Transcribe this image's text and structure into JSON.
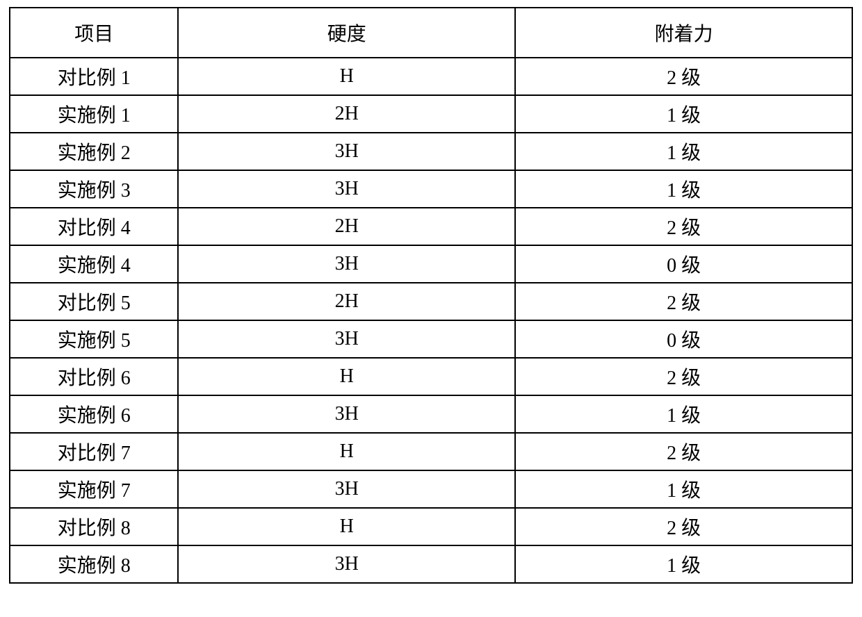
{
  "table": {
    "type": "table",
    "background_color": "#ffffff",
    "border_color": "#000000",
    "border_width": 2,
    "text_color": "#000000",
    "font_family": "SimSun",
    "header_fontsize": 28,
    "cell_fontsize": 28,
    "header_row_height": 72,
    "data_row_height": 54,
    "column_widths_pct": [
      20,
      40,
      40
    ],
    "columns": [
      "项目",
      "硬度",
      "附着力"
    ],
    "rows": [
      [
        "对比例 1",
        "H",
        "2 级"
      ],
      [
        "实施例 1",
        "2H",
        "1 级"
      ],
      [
        "实施例 2",
        "3H",
        "1 级"
      ],
      [
        "实施例 3",
        "3H",
        "1 级"
      ],
      [
        "对比例 4",
        "2H",
        "2 级"
      ],
      [
        "实施例 4",
        "3H",
        "0 级"
      ],
      [
        "对比例 5",
        "2H",
        "2 级"
      ],
      [
        "实施例 5",
        "3H",
        "0 级"
      ],
      [
        "对比例 6",
        "H",
        "2 级"
      ],
      [
        "实施例 6",
        "3H",
        "1 级"
      ],
      [
        "对比例 7",
        "H",
        "2 级"
      ],
      [
        "实施例 7",
        "3H",
        "1 级"
      ],
      [
        "对比例 8",
        "H",
        "2 级"
      ],
      [
        "实施例 8",
        "3H",
        "1 级"
      ]
    ]
  }
}
